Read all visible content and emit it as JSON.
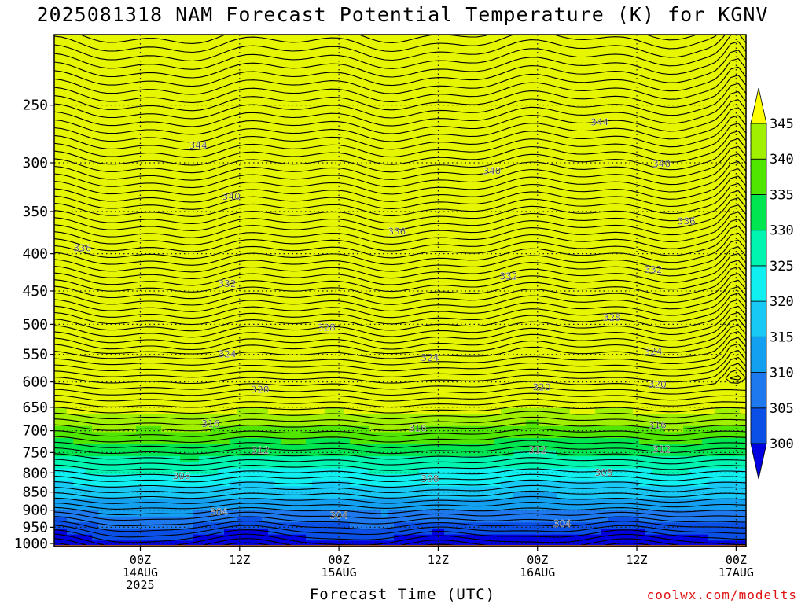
{
  "chart_data": {
    "type": "heatmap",
    "title": "2025081318 NAM Forecast Potential Temperature (K) for KGNV",
    "xlabel": "Forecast Time (UTC)",
    "ylabel": "",
    "credit": "coolwx.com/modelts",
    "y_axis": {
      "scale": "log",
      "inverted": true,
      "range": [
        1010,
        200
      ],
      "ticks": [
        250,
        300,
        350,
        400,
        450,
        500,
        550,
        600,
        650,
        700,
        750,
        800,
        850,
        900,
        950,
        1000
      ]
    },
    "x_axis": {
      "range_hours": [
        -4.4,
        79.2
      ],
      "ticks": [
        {
          "hour": 6,
          "lines": [
            "00Z",
            "14AUG",
            "2025"
          ]
        },
        {
          "hour": 18,
          "lines": [
            "12Z"
          ]
        },
        {
          "hour": 30,
          "lines": [
            "00Z",
            "15AUG"
          ]
        },
        {
          "hour": 42,
          "lines": [
            "12Z"
          ]
        },
        {
          "hour": 54,
          "lines": [
            "00Z",
            "16AUG"
          ]
        },
        {
          "hour": 66,
          "lines": [
            "12Z"
          ]
        },
        {
          "hour": 78,
          "lines": [
            "00Z",
            "17AUG"
          ]
        }
      ]
    },
    "grid": true,
    "colorbar": {
      "levels": [
        300,
        305,
        310,
        315,
        320,
        325,
        330,
        335,
        340,
        345
      ],
      "colors": [
        "#0000e0",
        "#0a50e6",
        "#1e78ee",
        "#14a0f0",
        "#18c8f5",
        "#10f0f0",
        "#00f5b0",
        "#00e650",
        "#50e600",
        "#a0f000",
        "#e6f500",
        "#ffff00"
      ],
      "extend": "both",
      "position": "right"
    },
    "contour_interval": 2,
    "contour_labels": [
      {
        "value": 344,
        "hour": 13,
        "p": 284
      },
      {
        "value": 340,
        "hour": 17,
        "p": 334
      },
      {
        "value": 336,
        "hour": -1,
        "p": 393
      },
      {
        "value": 332,
        "hour": 16.5,
        "p": 440
      },
      {
        "value": 324,
        "hour": 16.5,
        "p": 550
      },
      {
        "value": 320,
        "hour": 20.5,
        "p": 615
      },
      {
        "value": 316,
        "hour": 14.5,
        "p": 685
      },
      {
        "value": 312,
        "hour": 20.5,
        "p": 745
      },
      {
        "value": 308,
        "hour": 11,
        "p": 808
      },
      {
        "value": 304,
        "hour": 15.5,
        "p": 905
      },
      {
        "value": 336,
        "hour": 37,
        "p": 373
      },
      {
        "value": 332,
        "hour": 50.5,
        "p": 430
      },
      {
        "value": 328,
        "hour": 28.5,
        "p": 505
      },
      {
        "value": 324,
        "hour": 41,
        "p": 556
      },
      {
        "value": 316,
        "hour": 39.5,
        "p": 695
      },
      {
        "value": 308,
        "hour": 41,
        "p": 815
      },
      {
        "value": 304,
        "hour": 30,
        "p": 915
      },
      {
        "value": 340,
        "hour": 48.5,
        "p": 308
      },
      {
        "value": 320,
        "hour": 54.5,
        "p": 610
      },
      {
        "value": 312,
        "hour": 54,
        "p": 745
      },
      {
        "value": 344,
        "hour": 61.5,
        "p": 264
      },
      {
        "value": 340,
        "hour": 69,
        "p": 301
      },
      {
        "value": 336,
        "hour": 72,
        "p": 361
      },
      {
        "value": 332,
        "hour": 68,
        "p": 421
      },
      {
        "value": 328,
        "hour": 63,
        "p": 490
      },
      {
        "value": 324,
        "hour": 68,
        "p": 545
      },
      {
        "value": 320,
        "hour": 68.5,
        "p": 605
      },
      {
        "value": 316,
        "hour": 68.5,
        "p": 688
      },
      {
        "value": 312,
        "hour": 69,
        "p": 743
      },
      {
        "value": 308,
        "hour": 62,
        "p": 799
      },
      {
        "value": 304,
        "hour": 57,
        "p": 940
      }
    ]
  }
}
